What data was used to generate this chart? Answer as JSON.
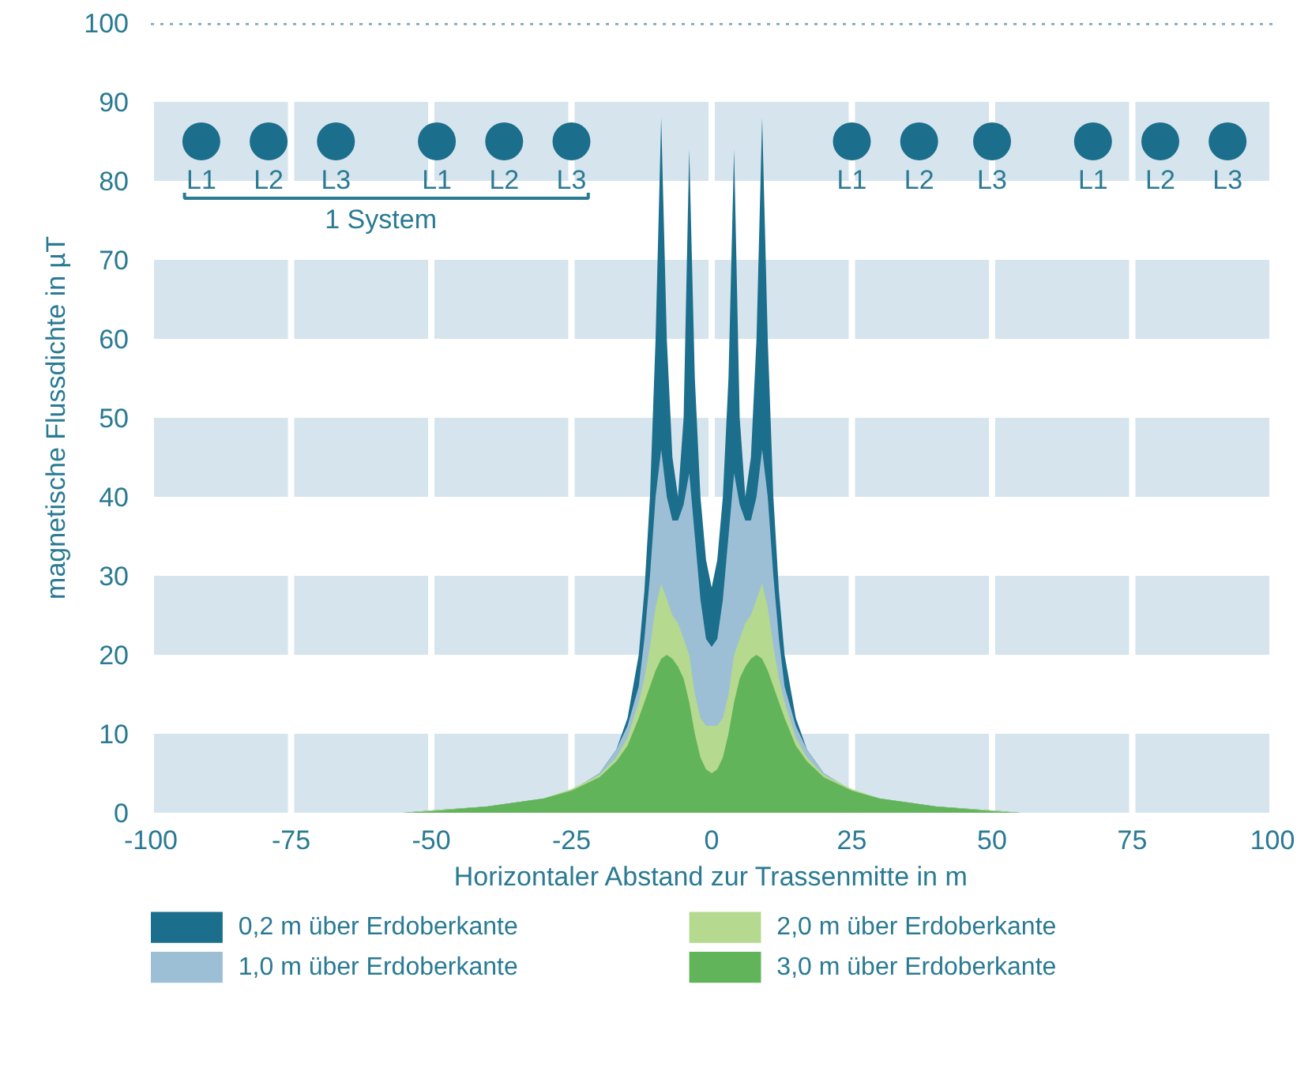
{
  "chart_data": {
    "type": "area",
    "xlabel": "Horizontaler Abstand zur Trassenmitte in m",
    "ylabel": "magnetische Flussdichte in µT",
    "x": [
      -55,
      -50,
      -40,
      -30,
      -25,
      -20,
      -17,
      -15,
      -13,
      -12,
      -11,
      -10,
      -9,
      -8,
      -7,
      -6,
      -5,
      -4,
      -3,
      -2,
      -1,
      0,
      1,
      2,
      3,
      4,
      5,
      6,
      7,
      8,
      9,
      10,
      11,
      12,
      13,
      15,
      17,
      20,
      25,
      30,
      40,
      50,
      55
    ],
    "series": [
      {
        "name": "0,2 m über Erdoberkante",
        "color": "#1b6e8c",
        "values": [
          0,
          0.3,
          0.8,
          1.8,
          2.8,
          5,
          8,
          12,
          20,
          28,
          40,
          60,
          88,
          60,
          45,
          40,
          50,
          84,
          55,
          40,
          32,
          28.5,
          32,
          40,
          55,
          84,
          50,
          40,
          45,
          60,
          88,
          60,
          40,
          28,
          20,
          12,
          8,
          5,
          2.8,
          1.8,
          0.8,
          0.3,
          0
        ]
      },
      {
        "name": "1,0 m über Erdoberkante",
        "color": "#9dbfd6",
        "values": [
          0,
          0.3,
          0.8,
          1.8,
          2.8,
          5,
          8,
          11,
          16,
          22,
          30,
          40,
          46,
          40,
          37,
          37,
          39,
          43,
          35,
          27,
          22,
          21,
          22,
          27,
          35,
          43,
          39,
          37,
          37,
          40,
          46,
          40,
          30,
          22,
          16,
          11,
          8,
          5,
          2.8,
          1.8,
          0.8,
          0.3,
          0
        ]
      },
      {
        "name": "2,0 m über Erdoberkante",
        "color": "#b5d98f",
        "values": [
          0,
          0.3,
          0.8,
          1.8,
          3,
          4.8,
          7,
          9.5,
          14,
          17,
          21,
          26,
          29,
          27,
          25,
          24,
          22,
          20,
          15,
          12,
          11,
          11,
          11,
          12,
          15,
          20,
          22,
          24,
          25,
          27,
          29,
          26,
          21,
          17,
          14,
          9.5,
          7,
          4.8,
          3,
          1.8,
          0.8,
          0.3,
          0
        ]
      },
      {
        "name": "3,0 m über Erdoberkante",
        "color": "#62b45a",
        "values": [
          0,
          0.2,
          0.8,
          1.8,
          2.8,
          4.5,
          6.5,
          8.5,
          12,
          14,
          16,
          18,
          19.5,
          20,
          19.5,
          18.5,
          17,
          14,
          10,
          7,
          5.5,
          5,
          5.5,
          7,
          10,
          14,
          17,
          18.5,
          19.5,
          20,
          19.5,
          18,
          16,
          14,
          12,
          8.5,
          6.5,
          4.5,
          2.8,
          1.8,
          0.8,
          0.2,
          0
        ]
      },
      {
        "type": "scatter",
        "color": "#1b6e8c",
        "x": [
          -91,
          -79,
          -67,
          -49,
          -37,
          -25,
          25,
          37,
          50,
          68,
          80,
          92
        ],
        "values": [
          85,
          85,
          85,
          85,
          85,
          85,
          85,
          85,
          85,
          85,
          85,
          85
        ]
      }
    ],
    "xlim": [
      -100,
      100
    ],
    "ylim": [
      0,
      100
    ],
    "xticks": [
      -100,
      -75,
      -50,
      -25,
      0,
      25,
      50,
      75,
      100
    ],
    "yticks": [
      0,
      10,
      20,
      30,
      40,
      50,
      60,
      70,
      80,
      90,
      100
    ],
    "grid": "x",
    "bands": [
      {
        "axis": "y",
        "from": 0,
        "to": 10,
        "color": "#d6e4ed"
      },
      {
        "axis": "y",
        "from": 20,
        "to": 30,
        "color": "#d6e4ed"
      },
      {
        "axis": "y",
        "from": 40,
        "to": 50,
        "color": "#d6e4ed"
      },
      {
        "axis": "y",
        "from": 60,
        "to": 70,
        "color": "#d6e4ed"
      },
      {
        "axis": "y",
        "from": 80,
        "to": 90,
        "color": "#d6e4ed"
      }
    ],
    "ref_lines": [
      {
        "axis": "y",
        "value": 100,
        "color": "#8fb3c4",
        "line_style": "dotted"
      }
    ],
    "legend": "bottom",
    "annotations": [
      {
        "text": "L1",
        "x": -91,
        "y": 85
      },
      {
        "text": "L2",
        "x": -79,
        "y": 85
      },
      {
        "text": "L3",
        "x": -67,
        "y": 85
      },
      {
        "text": "L1",
        "x": -49,
        "y": 85
      },
      {
        "text": "L2",
        "x": -37,
        "y": 85
      },
      {
        "text": "L3",
        "x": -25,
        "y": 85
      },
      {
        "text": "L1",
        "x": 25,
        "y": 85
      },
      {
        "text": "L2",
        "x": 37,
        "y": 85
      },
      {
        "text": "L3",
        "x": 50,
        "y": 85
      },
      {
        "text": "L1",
        "x": 68,
        "y": 85
      },
      {
        "text": "L2",
        "x": 80,
        "y": 85
      },
      {
        "text": "L3",
        "x": 92,
        "y": 85
      },
      "1 System"
    ]
  }
}
